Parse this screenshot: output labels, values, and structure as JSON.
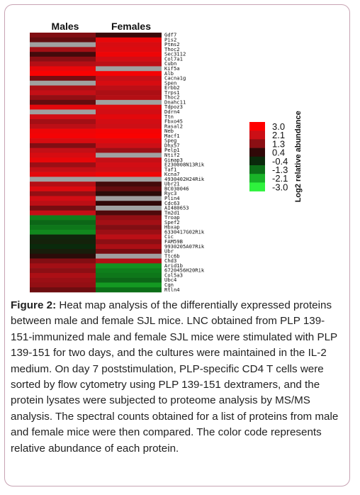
{
  "chart_data": {
    "type": "heatmap",
    "columns": [
      "Males",
      "Females"
    ],
    "rows": [
      {
        "label": "Gdf7",
        "values": [
          1.2,
          0.5
        ]
      },
      {
        "label": "Pis2",
        "values": [
          0.9,
          2.6
        ]
      },
      {
        "label": "Ptms2",
        "values": [
          null,
          2.3
        ]
      },
      {
        "label": "Thoc2",
        "values": [
          1.6,
          2.4
        ]
      },
      {
        "label": "Sec3112",
        "values": [
          0.6,
          2.7
        ]
      },
      {
        "label": "Col7a1",
        "values": [
          1.3,
          2.2
        ]
      },
      {
        "label": "Cubn",
        "values": [
          1.8,
          1.9
        ]
      },
      {
        "label": "Kif5a",
        "values": [
          2.6,
          null
        ]
      },
      {
        "label": "Alb",
        "values": [
          2.9,
          2.8
        ]
      },
      {
        "label": "Cacna1g",
        "values": [
          1.1,
          2.0
        ]
      },
      {
        "label": "Spen",
        "values": [
          null,
          2.3
        ]
      },
      {
        "label": "Erbb2",
        "values": [
          1.7,
          1.9
        ]
      },
      {
        "label": "Trps1",
        "values": [
          2.0,
          1.7
        ]
      },
      {
        "label": "Thoc2",
        "values": [
          1.4,
          1.8
        ]
      },
      {
        "label": "Dnahc11",
        "values": [
          0.9,
          null
        ]
      },
      {
        "label": "Tdpoz3",
        "values": [
          2.5,
          2.4
        ]
      },
      {
        "label": "Ddrn4",
        "values": [
          null,
          2.2
        ]
      },
      {
        "label": "Ttn",
        "values": [
          2.2,
          2.5
        ]
      },
      {
        "label": "Fbxo45",
        "values": [
          1.6,
          2.2
        ]
      },
      {
        "label": "Rasal2",
        "values": [
          1.9,
          2.1
        ]
      },
      {
        "label": "Neb",
        "values": [
          2.7,
          2.8
        ]
      },
      {
        "label": "Macf1",
        "values": [
          2.8,
          2.9
        ]
      },
      {
        "label": "Speg",
        "values": [
          2.3,
          2.4
        ]
      },
      {
        "label": "Dhx57",
        "values": [
          1.2,
          2.1
        ]
      },
      {
        "label": "Pelp1",
        "values": [
          2.0,
          1.5
        ]
      },
      {
        "label": "Ntif2",
        "values": [
          2.3,
          null
        ]
      },
      {
        "label": "Gimap3",
        "values": [
          2.6,
          2.0
        ]
      },
      {
        "label": "E230008N13Rik",
        "values": [
          1.5,
          2.2
        ]
      },
      {
        "label": "Taf1",
        "values": [
          2.0,
          2.1
        ]
      },
      {
        "label": "Kcna7",
        "values": [
          2.5,
          2.7
        ]
      },
      {
        "label": "4930402H24Rik",
        "values": [
          null,
          null
        ]
      },
      {
        "label": "Ubr21",
        "values": [
          1.8,
          0.6
        ]
      },
      {
        "label": "BC030046",
        "values": [
          2.4,
          0.9
        ]
      },
      {
        "label": "Ryc3",
        "values": [
          1.4,
          0.3
        ]
      },
      {
        "label": "Plin4",
        "values": [
          2.2,
          null
        ]
      },
      {
        "label": "Cdc63",
        "values": [
          1.9,
          0.4
        ]
      },
      {
        "label": "AI480653",
        "values": [
          1.1,
          null
        ]
      },
      {
        "label": "Tm2d1",
        "values": [
          2.0,
          0.7
        ]
      },
      {
        "label": "Troap",
        "values": [
          -1.5,
          1.4
        ]
      },
      {
        "label": "Spef2",
        "values": [
          -1.2,
          1.6
        ]
      },
      {
        "label": "Hbxap",
        "values": [
          -1.4,
          1.2
        ]
      },
      {
        "label": "6330417G02Rik",
        "values": [
          -1.6,
          1.5
        ]
      },
      {
        "label": "Cic",
        "values": [
          -0.3,
          1.9
        ]
      },
      {
        "label": "FAM59B",
        "values": [
          -0.2,
          1.3
        ]
      },
      {
        "label": "9930205A07Rik",
        "values": [
          -0.4,
          1.7
        ]
      },
      {
        "label": "Ubr",
        "values": [
          -0.1,
          1.1
        ]
      },
      {
        "label": "Ttc6b",
        "values": [
          0.3,
          null
        ]
      },
      {
        "label": "Chd3",
        "values": [
          1.2,
          1.8
        ]
      },
      {
        "label": "Arid1b",
        "values": [
          1.6,
          -1.7
        ]
      },
      {
        "label": "6720456H20Rik",
        "values": [
          1.3,
          -1.5
        ]
      },
      {
        "label": "Col5a3",
        "values": [
          1.7,
          -1.4
        ]
      },
      {
        "label": "Ubc4",
        "values": [
          1.5,
          -1.2
        ]
      },
      {
        "label": "Cgn",
        "values": [
          1.4,
          -1.8
        ]
      },
      {
        "label": "Rtln4",
        "values": [
          1.0,
          -1.3
        ]
      }
    ],
    "legend": {
      "title": "Log2 relative abundance",
      "ticks": [
        "3.0",
        "2.1",
        "1.3",
        "0.4",
        "-0.4",
        "-1.3",
        "-2.1",
        "-3.0"
      ],
      "colors": [
        "#ff0000",
        "#cc0f16",
        "#8b0f14",
        "#300808",
        "#0a2a0c",
        "#0c6e18",
        "#19b328",
        "#2ef23d"
      ],
      "placement": "right"
    },
    "missing_color": "#a0a0a0"
  },
  "caption": {
    "label": "Figure 2:",
    "text": " Heat map analysis of the differentially expressed proteins between male and female SJL mice. LNC obtained from PLP 139-151-immunized male and female SJL mice were stimulated with PLP 139-151 for two days, and the cultures were maintained in the IL-2 medium. On day 7 poststimulation, PLP-specific CD4 T cells were sorted by flow cytometry using PLP 139-151 dextramers, and the protein lysates were subjected to proteome analysis by MS/MS analysis. The spectral counts obtained for a list of proteins from male and female mice were then compared. The color code represents relative abundance of each protein."
  }
}
